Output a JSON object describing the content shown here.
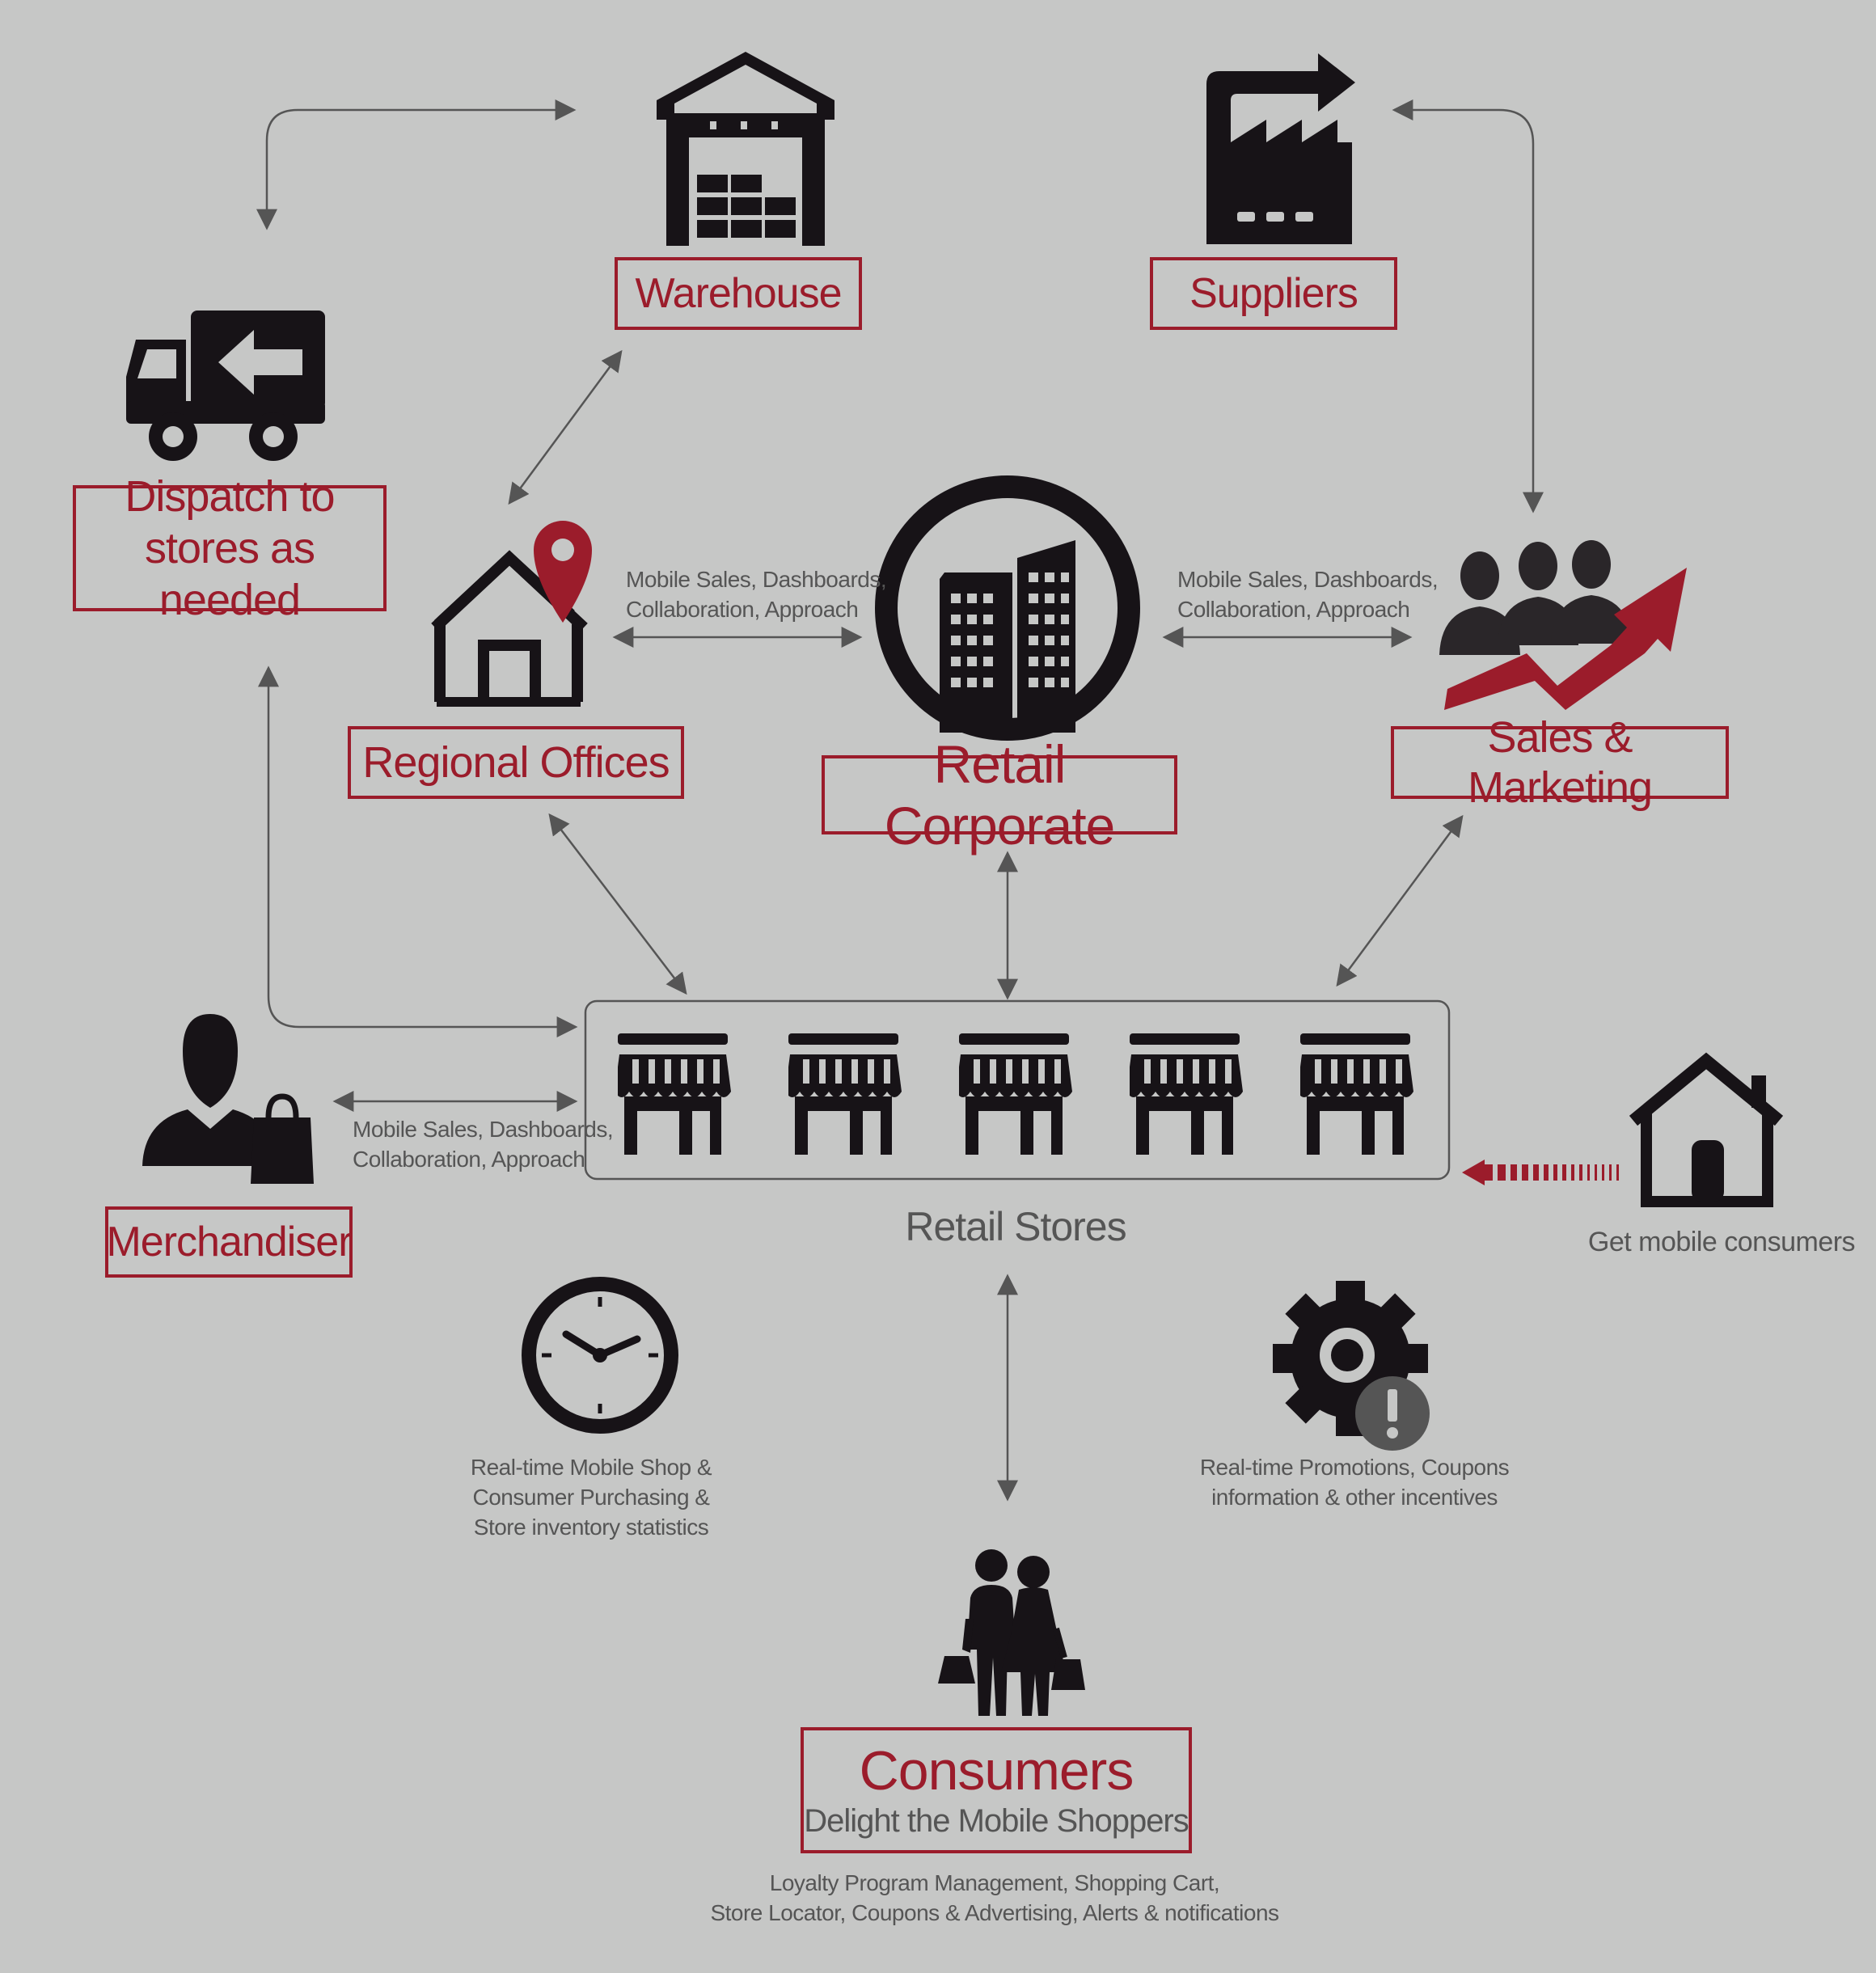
{
  "nodes": {
    "warehouse": "Warehouse",
    "suppliers": "Suppliers",
    "dispatch": [
      "Dispatch to",
      "stores as needed"
    ],
    "regional_offices": "Regional Offices",
    "retail_corporate": "Retail Corporate",
    "sales_marketing": "Sales & Marketing",
    "merchandiser": "Merchandiser",
    "retail_stores": "Retail Stores",
    "consumers_title": "Consumers",
    "consumers_subtitle": "Delight the Mobile Shoppers",
    "get_mobile_consumers": "Get mobile consumers"
  },
  "captions": {
    "regional_corporate": [
      "Mobile Sales, Dashboards,",
      "Collaboration, Approach"
    ],
    "corporate_sales": [
      "Mobile Sales, Dashboards,",
      "Collaboration, Approach"
    ],
    "merchandiser_stores": [
      "Mobile Sales, Dashboards,",
      "Collaboration, Approach"
    ],
    "realtime_shop": [
      "Real-time Mobile Shop &",
      "Consumer Purchasing &",
      "Store inventory statistics"
    ],
    "realtime_promotions": [
      "Real-time Promotions, Coupons",
      "information & other incentives"
    ],
    "consumer_features": [
      "Loyalty Program Management, Shopping Cart,",
      "Store Locator,  Coupons & Advertising, Alerts & notifications"
    ]
  },
  "icons": [
    "warehouse-icon",
    "factory-icon",
    "delivery-truck-icon",
    "house-location-pin-icon",
    "city-buildings-icon",
    "sales-team-growth-icon",
    "storefront-icon",
    "merchandiser-icon",
    "home-icon",
    "clock-icon",
    "gear-alert-icon",
    "shopping-couple-icon"
  ],
  "colors": {
    "accent": "#9b1c2b",
    "icon": "#171317",
    "arrow": "#555555",
    "background": "#c6c7c6"
  }
}
